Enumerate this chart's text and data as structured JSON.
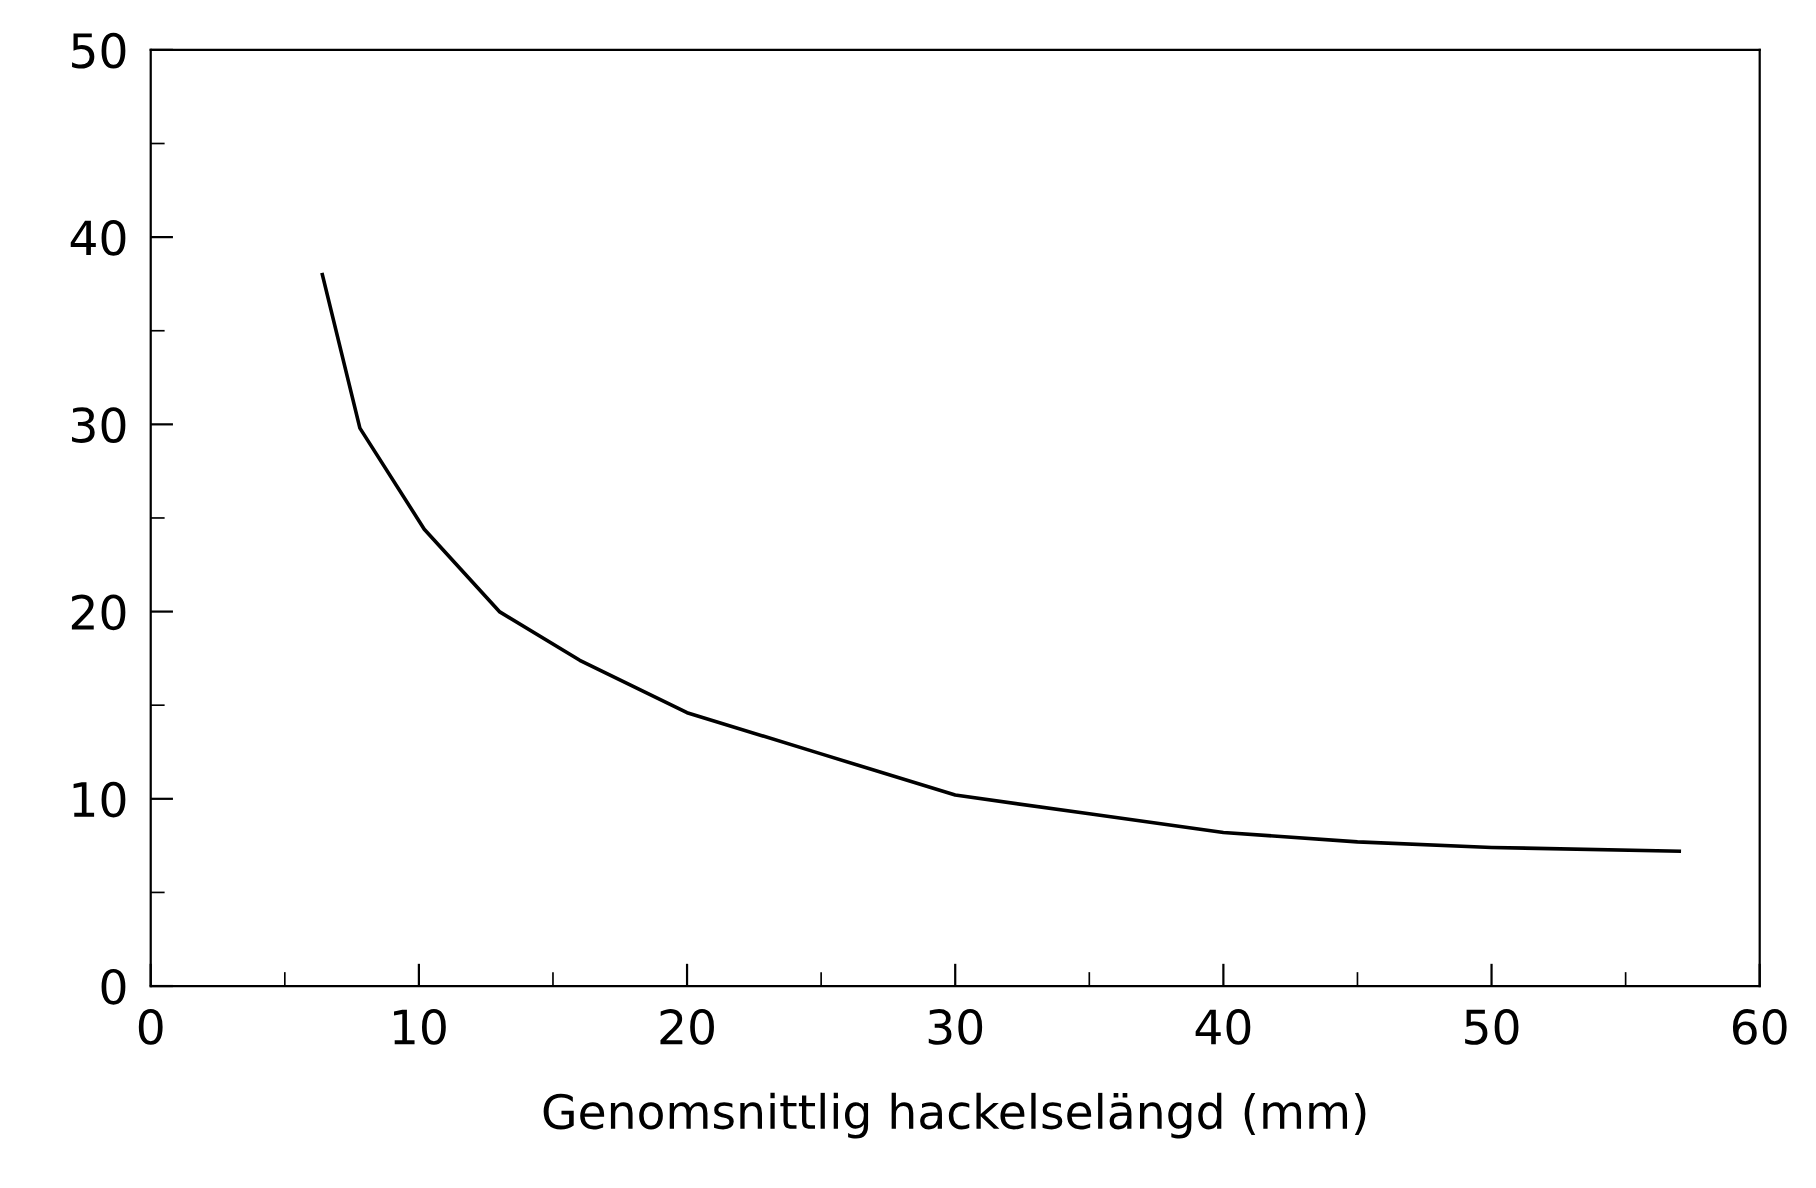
{
  "chart_data": {
    "type": "line",
    "xlabel": "Genomsnittlig hackelselängd (mm)",
    "series": [
      {
        "color": "#000000",
        "x": [
          6.4,
          7.8,
          10.2,
          13,
          16,
          20,
          25,
          30,
          35,
          40,
          45,
          50,
          57
        ],
        "values": [
          38,
          29.8,
          24.4,
          20,
          17.4,
          14.6,
          12.4,
          10.2,
          9.2,
          8.2,
          7.7,
          7.4,
          7.2
        ]
      }
    ],
    "xlim": [
      0,
      60
    ],
    "ylim": [
      0,
      50
    ],
    "xticks": [
      0,
      10,
      20,
      30,
      40,
      50,
      60
    ],
    "yticks": [
      0,
      10,
      20,
      30,
      40,
      50
    ],
    "grid": false,
    "legend": false,
    "marker": "none",
    "line_style": "solid"
  }
}
